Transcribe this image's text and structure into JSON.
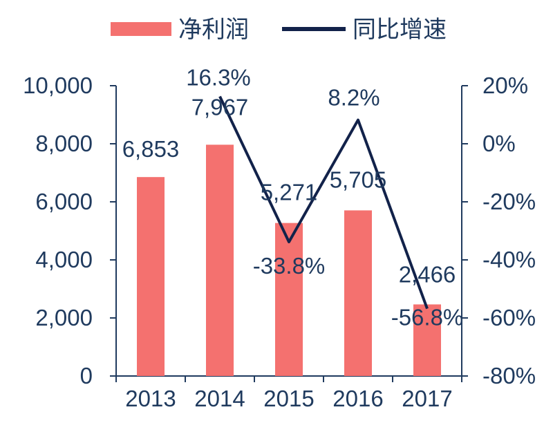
{
  "chart_data": {
    "type": "bar+line",
    "title": "",
    "xlabel": "",
    "ylabel": "",
    "categories": [
      "2013",
      "2014",
      "2015",
      "2016",
      "2017"
    ],
    "legend_position": "top",
    "grid": false,
    "series": [
      {
        "name": "净利润",
        "type": "bar",
        "axis": "left",
        "color": "#f4716f",
        "values": [
          6853,
          7967,
          5271,
          5705,
          2466
        ],
        "labels": [
          "6,853",
          "7,967",
          "5,271",
          "5,705",
          "2,466"
        ]
      },
      {
        "name": "同比增速",
        "type": "line",
        "axis": "right",
        "color": "#12224a",
        "values": [
          null,
          16.3,
          -33.8,
          8.2,
          -56.8
        ],
        "labels": [
          "",
          "16.3%",
          "-33.8%",
          "8.2%",
          "-56.8%"
        ]
      }
    ],
    "y_left": {
      "range": [
        0,
        10000
      ],
      "ticks": [
        0,
        2000,
        4000,
        6000,
        8000,
        10000
      ],
      "tick_labels": [
        "0",
        "2,000",
        "4,000",
        "6,000",
        "8,000",
        "10,000"
      ]
    },
    "y_right": {
      "range": [
        -80,
        20
      ],
      "ticks": [
        -80,
        -60,
        -40,
        -20,
        0,
        20
      ],
      "tick_labels": [
        "-80%",
        "-60%",
        "-40%",
        "-20%",
        "0%",
        "20%"
      ]
    },
    "colors": {
      "axis": "#1f3a5e",
      "text": "#1f3a5e"
    }
  }
}
